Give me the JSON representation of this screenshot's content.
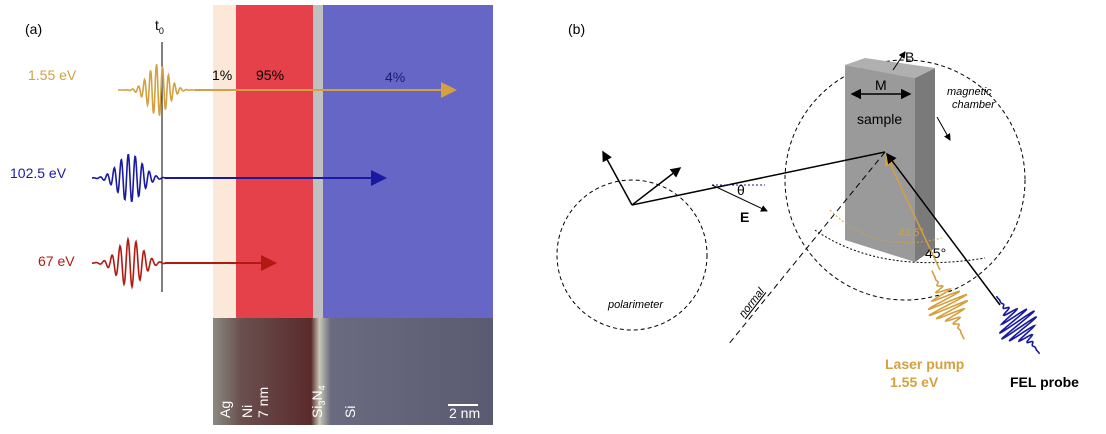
{
  "panel_a": {
    "label": "(a)",
    "t0": {
      "base": "t",
      "sub": "0"
    },
    "beams": [
      "1.55 eV",
      "102.5 eV",
      "67 eV"
    ],
    "absorption": [
      "1%",
      "95%",
      "4%"
    ],
    "layers": {
      "ag": "Ag",
      "ni": "Ni",
      "ni_thickness": "7 nm",
      "si3n4": {
        "si": "Si",
        "sub1": "3",
        "n": "N",
        "sub2": "4"
      },
      "si": "Si"
    },
    "scale_bar": "2 nm"
  },
  "panel_b": {
    "label": "(b)",
    "b_field": "B",
    "magnetization": "M",
    "sample": "sample",
    "chamber": [
      "magnetic",
      "chamber"
    ],
    "theta": "θ",
    "e_field": "E",
    "polarimeter": "polarimeter",
    "normal": "normal",
    "pump_angle": "43.5°",
    "probe_angle": "45°",
    "pump": [
      "Laser pump",
      "1.55 eV"
    ],
    "probe": "FEL probe"
  }
}
